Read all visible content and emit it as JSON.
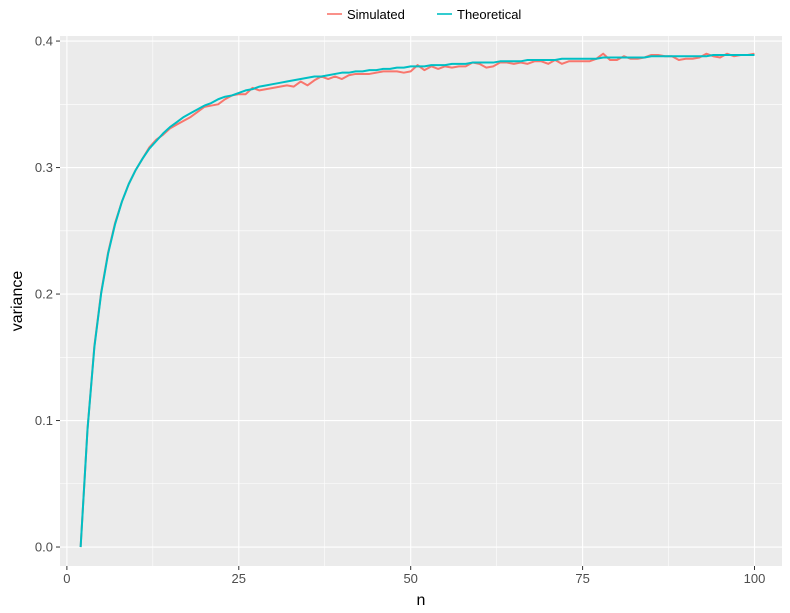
{
  "chart_data": {
    "type": "line",
    "title": "",
    "xlabel": "n",
    "ylabel": "variance",
    "xlim": [
      -1,
      104
    ],
    "ylim": [
      -0.015,
      0.404
    ],
    "x_ticks": [
      0,
      25,
      50,
      75,
      100
    ],
    "x_tick_labels": [
      "0",
      "25",
      "50",
      "75",
      "100"
    ],
    "y_ticks": [
      0.0,
      0.1,
      0.2,
      0.3,
      0.4
    ],
    "y_tick_labels": [
      "0.0",
      "0.1",
      "0.2",
      "0.3",
      "0.4"
    ],
    "grid": true,
    "legend_position": "top",
    "series": [
      {
        "name": "Simulated",
        "color": "#F8766D",
        "x": [
          2,
          3,
          4,
          5,
          6,
          7,
          8,
          9,
          10,
          11,
          12,
          13,
          14,
          15,
          16,
          17,
          18,
          19,
          20,
          21,
          22,
          23,
          24,
          25,
          26,
          27,
          28,
          29,
          30,
          31,
          32,
          33,
          34,
          35,
          36,
          37,
          38,
          39,
          40,
          41,
          42,
          43,
          44,
          45,
          46,
          47,
          48,
          49,
          50,
          51,
          52,
          53,
          54,
          55,
          56,
          57,
          58,
          59,
          60,
          61,
          62,
          63,
          64,
          65,
          66,
          67,
          68,
          69,
          70,
          71,
          72,
          73,
          74,
          75,
          76,
          77,
          78,
          79,
          80,
          81,
          82,
          83,
          84,
          85,
          86,
          87,
          88,
          89,
          90,
          91,
          92,
          93,
          94,
          95,
          96,
          97,
          98,
          99,
          100
        ],
        "values": [
          0.0,
          0.093,
          0.159,
          0.202,
          0.233,
          0.256,
          0.273,
          0.287,
          0.298,
          0.307,
          0.316,
          0.322,
          0.326,
          0.331,
          0.334,
          0.337,
          0.34,
          0.344,
          0.348,
          0.349,
          0.35,
          0.354,
          0.357,
          0.358,
          0.358,
          0.363,
          0.361,
          0.362,
          0.363,
          0.364,
          0.365,
          0.364,
          0.368,
          0.365,
          0.369,
          0.372,
          0.37,
          0.372,
          0.37,
          0.373,
          0.374,
          0.374,
          0.374,
          0.375,
          0.376,
          0.376,
          0.376,
          0.375,
          0.376,
          0.381,
          0.377,
          0.38,
          0.378,
          0.38,
          0.379,
          0.38,
          0.38,
          0.383,
          0.382,
          0.379,
          0.38,
          0.383,
          0.383,
          0.382,
          0.383,
          0.382,
          0.384,
          0.384,
          0.382,
          0.385,
          0.382,
          0.384,
          0.384,
          0.384,
          0.384,
          0.386,
          0.39,
          0.385,
          0.385,
          0.388,
          0.386,
          0.386,
          0.387,
          0.389,
          0.389,
          0.388,
          0.388,
          0.385,
          0.386,
          0.386,
          0.387,
          0.39,
          0.388,
          0.387,
          0.39,
          0.388,
          0.389,
          0.389,
          0.39
        ]
      },
      {
        "name": "Theoretical",
        "color": "#00BFC4",
        "x": [
          2,
          3,
          4,
          5,
          6,
          7,
          8,
          9,
          10,
          11,
          12,
          13,
          14,
          15,
          16,
          17,
          18,
          19,
          20,
          21,
          22,
          23,
          24,
          25,
          26,
          27,
          28,
          29,
          30,
          31,
          32,
          33,
          34,
          35,
          36,
          37,
          38,
          39,
          40,
          41,
          42,
          43,
          44,
          45,
          46,
          47,
          48,
          49,
          50,
          51,
          52,
          53,
          54,
          55,
          56,
          57,
          58,
          59,
          60,
          61,
          62,
          63,
          64,
          65,
          66,
          67,
          68,
          69,
          70,
          71,
          72,
          73,
          74,
          75,
          76,
          77,
          78,
          79,
          80,
          81,
          82,
          83,
          84,
          85,
          86,
          87,
          88,
          89,
          90,
          91,
          92,
          93,
          94,
          95,
          96,
          97,
          98,
          99,
          100
        ],
        "values": [
          0.0,
          0.093,
          0.158,
          0.201,
          0.232,
          0.255,
          0.273,
          0.287,
          0.298,
          0.307,
          0.315,
          0.321,
          0.327,
          0.332,
          0.336,
          0.34,
          0.343,
          0.346,
          0.349,
          0.351,
          0.354,
          0.356,
          0.357,
          0.359,
          0.361,
          0.362,
          0.364,
          0.365,
          0.366,
          0.367,
          0.368,
          0.369,
          0.37,
          0.371,
          0.372,
          0.372,
          0.373,
          0.374,
          0.375,
          0.375,
          0.376,
          0.376,
          0.377,
          0.377,
          0.378,
          0.378,
          0.379,
          0.379,
          0.38,
          0.38,
          0.38,
          0.381,
          0.381,
          0.381,
          0.382,
          0.382,
          0.382,
          0.383,
          0.383,
          0.383,
          0.383,
          0.384,
          0.384,
          0.384,
          0.384,
          0.385,
          0.385,
          0.385,
          0.385,
          0.385,
          0.386,
          0.386,
          0.386,
          0.386,
          0.386,
          0.386,
          0.387,
          0.387,
          0.387,
          0.387,
          0.387,
          0.387,
          0.387,
          0.388,
          0.388,
          0.388,
          0.388,
          0.388,
          0.388,
          0.388,
          0.388,
          0.388,
          0.389,
          0.389,
          0.389,
          0.389,
          0.389,
          0.389,
          0.389
        ]
      }
    ]
  }
}
